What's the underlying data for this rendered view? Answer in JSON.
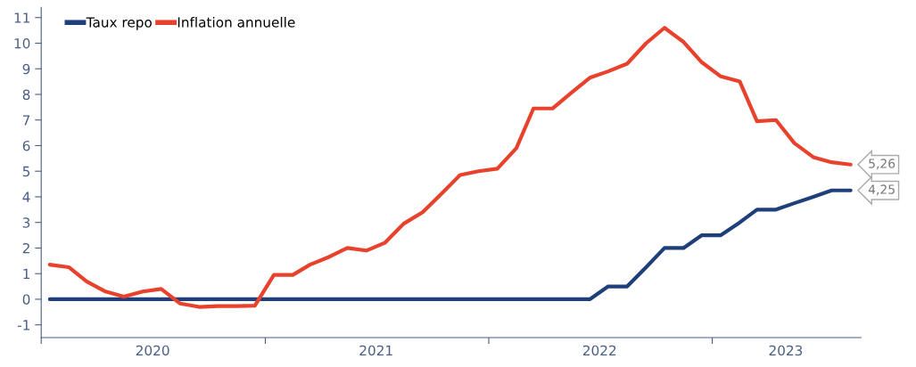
{
  "chart_data": {
    "type": "line",
    "x": [
      "2020-01-15",
      "2020-02-15",
      "2020-03-15",
      "2020-04-15",
      "2020-05-15",
      "2020-06-15",
      "2020-07-15",
      "2020-08-15",
      "2020-09-15",
      "2020-10-15",
      "2020-11-15",
      "2020-12-15",
      "2021-01-15",
      "2021-02-15",
      "2021-03-15",
      "2021-04-15",
      "2021-05-15",
      "2021-06-15",
      "2021-07-15",
      "2021-08-15",
      "2021-09-15",
      "2021-10-15",
      "2021-11-15",
      "2021-12-15",
      "2022-01-15",
      "2022-02-15",
      "2022-03-15",
      "2022-04-15",
      "2022-05-15",
      "2022-06-15",
      "2022-07-15",
      "2022-08-15",
      "2022-09-15",
      "2022-10-15",
      "2022-11-15",
      "2022-12-15",
      "2023-01-15",
      "2023-02-15",
      "2023-03-15",
      "2023-04-15",
      "2023-05-15",
      "2023-06-15",
      "2023-07-15",
      "2023-08-15"
    ],
    "series": [
      {
        "name": "Taux repo",
        "color": "#1f3f7a",
        "values": [
          0,
          0,
          0,
          0,
          0,
          0,
          0,
          0,
          0,
          0,
          0,
          0,
          0,
          0,
          0,
          0,
          0,
          0,
          0,
          0,
          0,
          0,
          0,
          0,
          0,
          0,
          0,
          0,
          0,
          0,
          0.5,
          0.5,
          1.25,
          2.0,
          2.0,
          2.5,
          2.5,
          3.0,
          3.5,
          3.5,
          3.75,
          4.0,
          4.25,
          4.25
        ]
      },
      {
        "name": "Inflation annuelle",
        "color": "#e8412c",
        "values": [
          1.35,
          1.25,
          0.7,
          0.3,
          0.1,
          0.3,
          0.4,
          -0.17,
          -0.3,
          -0.27,
          -0.27,
          -0.25,
          0.95,
          0.95,
          1.35,
          1.65,
          2.0,
          1.9,
          2.2,
          2.95,
          3.4,
          4.1,
          4.85,
          5.0,
          5.1,
          5.9,
          7.45,
          7.45,
          8.05,
          8.65,
          8.9,
          9.2,
          10.0,
          10.6,
          10.05,
          9.25,
          8.7,
          8.5,
          6.95,
          7.0,
          6.1,
          5.55,
          5.35,
          5.26
        ]
      }
    ],
    "annotations": [
      {
        "text": "5,26",
        "x": "2023-08-15",
        "y": 5.26
      },
      {
        "text": "4,25",
        "x": "2023-08-15",
        "y": 4.25
      }
    ],
    "xlim": [
      "2020-01-01",
      "2023-09-01"
    ],
    "xticks": [
      {
        "value": "2020-01-01",
        "label": null
      },
      {
        "value": "2020-07-01",
        "label": "2020"
      },
      {
        "value": "2021-01-01",
        "label": null
      },
      {
        "value": "2021-07-01",
        "label": "2021"
      },
      {
        "value": "2022-01-01",
        "label": null
      },
      {
        "value": "2022-07-01",
        "label": "2022"
      },
      {
        "value": "2023-01-01",
        "label": null
      },
      {
        "value": "2023-05-01",
        "label": "2023"
      }
    ],
    "ylim": [
      -1.5,
      11.4
    ],
    "yticks": [
      -1,
      0,
      1,
      2,
      3,
      4,
      5,
      6,
      7,
      8,
      9,
      10,
      11
    ],
    "legend": "top left",
    "grid": false,
    "marker": "none",
    "line_style": "solid"
  }
}
